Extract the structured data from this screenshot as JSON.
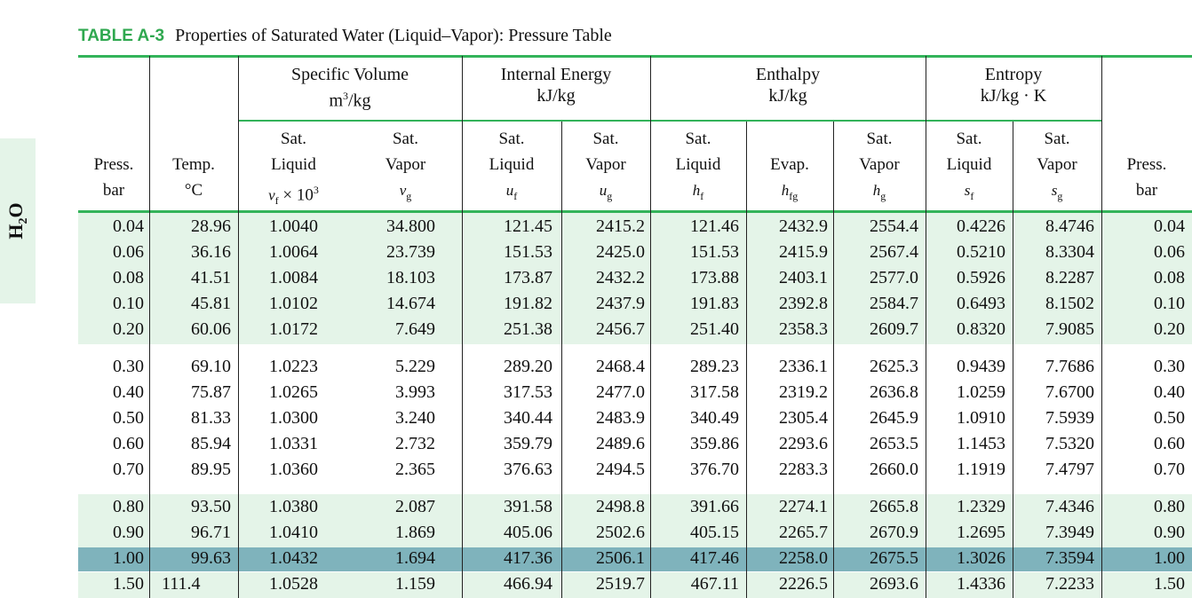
{
  "side_tab": "H2O",
  "caption": {
    "tag": "TABLE A-3",
    "title": "Properties of Saturated Water (Liquid–Vapor): Pressure Table"
  },
  "groups": {
    "specific_volume": {
      "name": "Specific Volume",
      "unit": "m3/kg"
    },
    "internal_energy": {
      "name": "Internal Energy",
      "unit": "kJ/kg"
    },
    "enthalpy": {
      "name": "Enthalpy",
      "unit": "kJ/kg"
    },
    "entropy": {
      "name": "Entropy",
      "unit": "kJ/kg · K"
    }
  },
  "columns": [
    {
      "l1": "",
      "l2": "Press.",
      "l3": "bar"
    },
    {
      "l1": "",
      "l2": "Temp.",
      "l3": "°C"
    },
    {
      "l1": "Sat.",
      "l2": "Liquid",
      "l3": "vf × 103"
    },
    {
      "l1": "Sat.",
      "l2": "Vapor",
      "l3": "vg"
    },
    {
      "l1": "Sat.",
      "l2": "Liquid",
      "l3": "uf"
    },
    {
      "l1": "Sat.",
      "l2": "Vapor",
      "l3": "ug"
    },
    {
      "l1": "Sat.",
      "l2": "Liquid",
      "l3": "hf"
    },
    {
      "l1": "",
      "l2": "Evap.",
      "l3": "hfg"
    },
    {
      "l1": "Sat.",
      "l2": "Vapor",
      "l3": "hg"
    },
    {
      "l1": "Sat.",
      "l2": "Liquid",
      "l3": "sf"
    },
    {
      "l1": "Sat.",
      "l2": "Vapor",
      "l3": "sg"
    },
    {
      "l1": "",
      "l2": "Press.",
      "l3": "bar"
    }
  ],
  "rows": [
    [
      "0.04",
      "28.96",
      "1.0040",
      "34.800",
      "121.45",
      "2415.2",
      "121.46",
      "2432.9",
      "2554.4",
      "0.4226",
      "8.4746",
      "0.04"
    ],
    [
      "0.06",
      "36.16",
      "1.0064",
      "23.739",
      "151.53",
      "2425.0",
      "151.53",
      "2415.9",
      "2567.4",
      "0.5210",
      "8.3304",
      "0.06"
    ],
    [
      "0.08",
      "41.51",
      "1.0084",
      "18.103",
      "173.87",
      "2432.2",
      "173.88",
      "2403.1",
      "2577.0",
      "0.5926",
      "8.2287",
      "0.08"
    ],
    [
      "0.10",
      "45.81",
      "1.0102",
      "14.674",
      "191.82",
      "2437.9",
      "191.83",
      "2392.8",
      "2584.7",
      "0.6493",
      "8.1502",
      "0.10"
    ],
    [
      "0.20",
      "60.06",
      "1.0172",
      "7.649",
      "251.38",
      "2456.7",
      "251.40",
      "2358.3",
      "2609.7",
      "0.8320",
      "7.9085",
      "0.20"
    ],
    [
      "0.30",
      "69.10",
      "1.0223",
      "5.229",
      "289.20",
      "2468.4",
      "289.23",
      "2336.1",
      "2625.3",
      "0.9439",
      "7.7686",
      "0.30"
    ],
    [
      "0.40",
      "75.87",
      "1.0265",
      "3.993",
      "317.53",
      "2477.0",
      "317.58",
      "2319.2",
      "2636.8",
      "1.0259",
      "7.6700",
      "0.40"
    ],
    [
      "0.50",
      "81.33",
      "1.0300",
      "3.240",
      "340.44",
      "2483.9",
      "340.49",
      "2305.4",
      "2645.9",
      "1.0910",
      "7.5939",
      "0.50"
    ],
    [
      "0.60",
      "85.94",
      "1.0331",
      "2.732",
      "359.79",
      "2489.6",
      "359.86",
      "2293.6",
      "2653.5",
      "1.1453",
      "7.5320",
      "0.60"
    ],
    [
      "0.70",
      "89.95",
      "1.0360",
      "2.365",
      "376.63",
      "2494.5",
      "376.70",
      "2283.3",
      "2660.0",
      "1.1919",
      "7.4797",
      "0.70"
    ],
    [
      "0.80",
      "93.50",
      "1.0380",
      "2.087",
      "391.58",
      "2498.8",
      "391.66",
      "2274.1",
      "2665.8",
      "1.2329",
      "7.4346",
      "0.80"
    ],
    [
      "0.90",
      "96.71",
      "1.0410",
      "1.869",
      "405.06",
      "2502.6",
      "405.15",
      "2265.7",
      "2670.9",
      "1.2695",
      "7.3949",
      "0.90"
    ],
    [
      "1.00",
      "99.63",
      "1.0432",
      "1.694",
      "417.36",
      "2506.1",
      "417.46",
      "2258.0",
      "2675.5",
      "1.3026",
      "7.3594",
      "1.00"
    ],
    [
      "1.50",
      "111.4",
      "1.0528",
      "1.159",
      "466.94",
      "2519.7",
      "467.11",
      "2226.5",
      "2693.6",
      "1.4336",
      "7.2233",
      "1.50"
    ]
  ],
  "colors": {
    "accent_green": "#33b35a",
    "row_tint": "#e4f4e8",
    "highlight_row": "#7fb3bc"
  }
}
